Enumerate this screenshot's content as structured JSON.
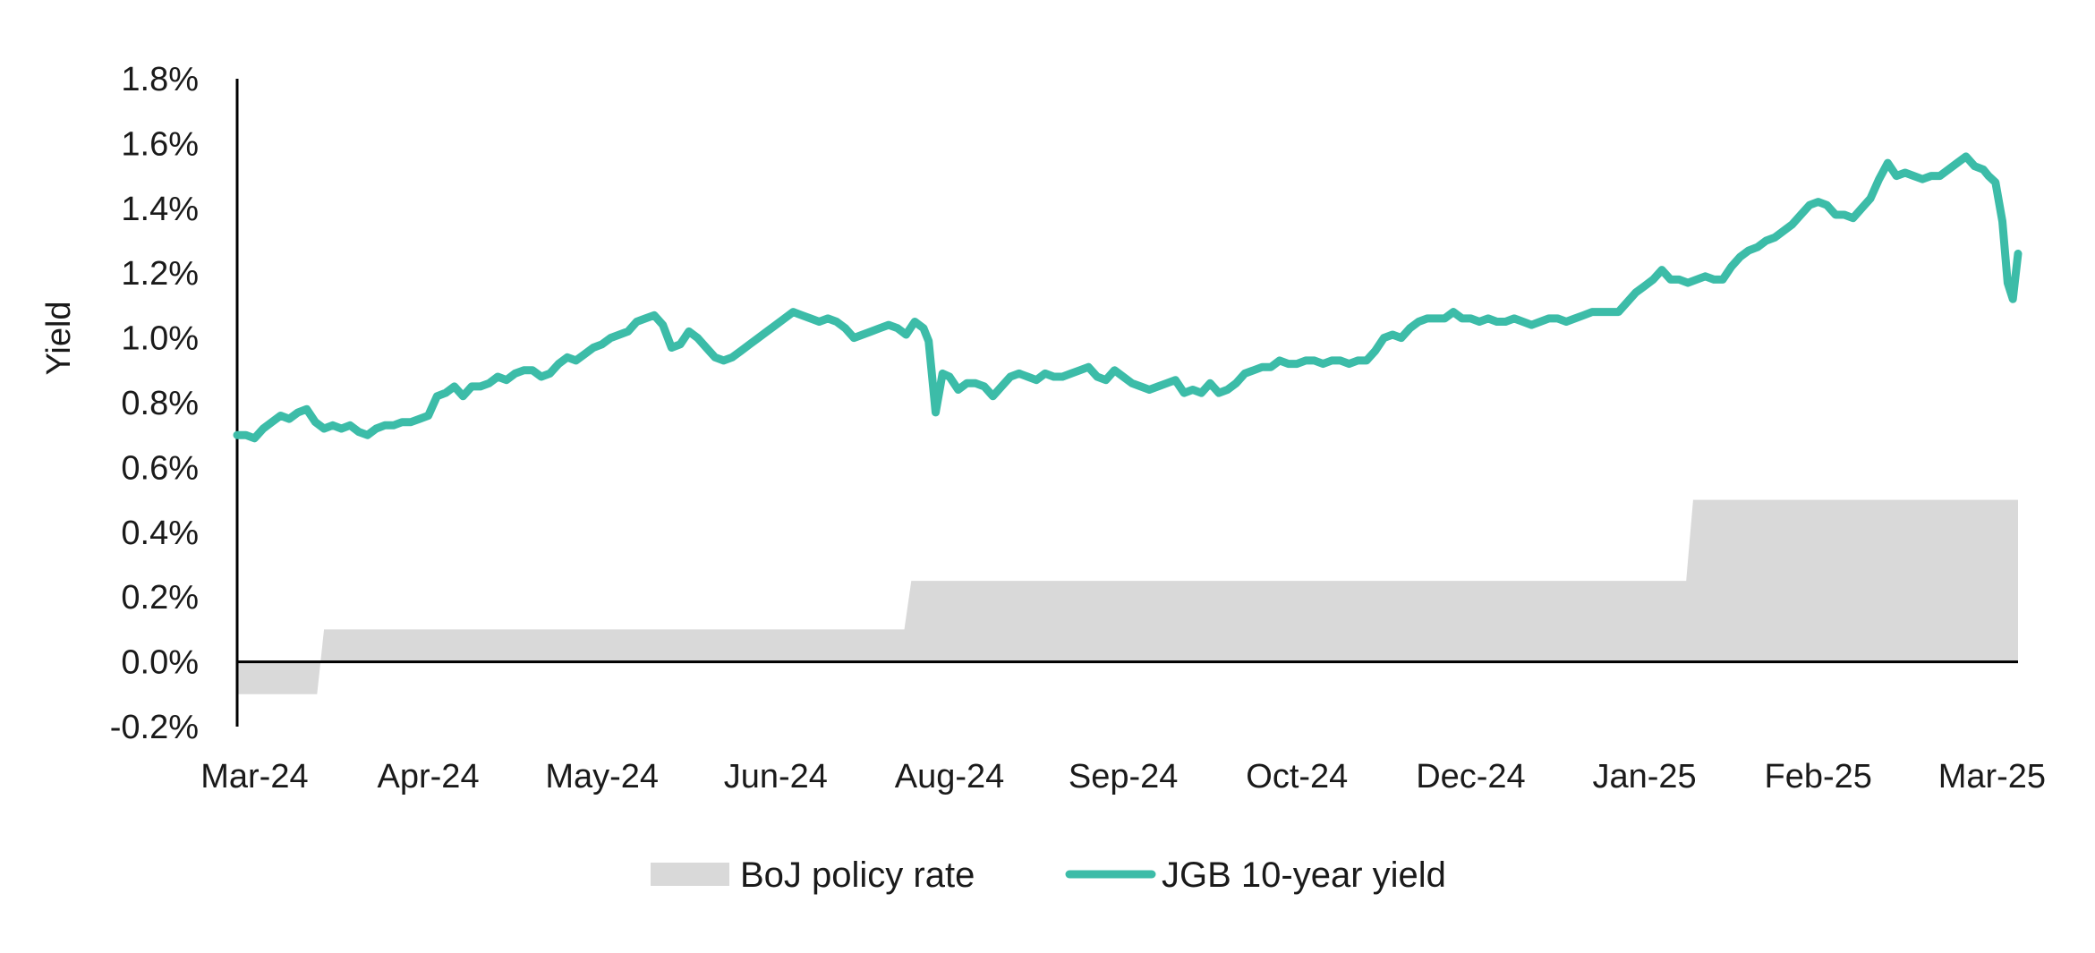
{
  "chart_data": {
    "type": "line",
    "title": "",
    "ylabel": "Yield",
    "xlabel": "",
    "ylim": [
      -0.2,
      1.8
    ],
    "y_ticks": [
      "1.8%",
      "1.6%",
      "1.4%",
      "1.2%",
      "1.0%",
      "0.8%",
      "0.6%",
      "0.4%",
      "0.2%",
      "0.0%",
      "-0.2%"
    ],
    "y_tick_values": [
      1.8,
      1.6,
      1.4,
      1.2,
      1.0,
      0.8,
      0.6,
      0.4,
      0.2,
      0.0,
      -0.2
    ],
    "x_ticks": [
      "Mar-24",
      "Apr-24",
      "May-24",
      "Jun-24",
      "Aug-24",
      "Sep-24",
      "Oct-24",
      "Dec-24",
      "Jan-25",
      "Feb-25",
      "Mar-25"
    ],
    "x_tick_positions": [
      0.1,
      1.1,
      2.1,
      3.1,
      4.1,
      5.1,
      6.1,
      7.1,
      8.1,
      9.1,
      10.1
    ],
    "xlim": [
      0,
      10.25
    ],
    "legend": {
      "placement": "bottom"
    },
    "series": [
      {
        "name": "BoJ policy rate",
        "kind": "area-step",
        "color": "#d9d9d9",
        "points": [
          [
            0,
            -0.1
          ],
          [
            0.46,
            -0.1
          ],
          [
            0.5,
            0.1
          ],
          [
            3.84,
            0.1
          ],
          [
            3.88,
            0.25
          ],
          [
            8.34,
            0.25
          ],
          [
            8.38,
            0.5
          ],
          [
            10.25,
            0.5
          ]
        ]
      },
      {
        "name": "JGB 10-year yield",
        "kind": "line",
        "color": "#3cbca8",
        "points": [
          [
            0,
            0.7
          ],
          [
            0.05,
            0.7
          ],
          [
            0.1,
            0.69
          ],
          [
            0.15,
            0.72
          ],
          [
            0.2,
            0.74
          ],
          [
            0.25,
            0.76
          ],
          [
            0.3,
            0.75
          ],
          [
            0.35,
            0.77
          ],
          [
            0.4,
            0.78
          ],
          [
            0.45,
            0.74
          ],
          [
            0.5,
            0.72
          ],
          [
            0.55,
            0.73
          ],
          [
            0.6,
            0.72
          ],
          [
            0.65,
            0.73
          ],
          [
            0.7,
            0.71
          ],
          [
            0.75,
            0.7
          ],
          [
            0.8,
            0.72
          ],
          [
            0.85,
            0.73
          ],
          [
            0.9,
            0.73
          ],
          [
            0.95,
            0.74
          ],
          [
            1.0,
            0.74
          ],
          [
            1.05,
            0.75
          ],
          [
            1.1,
            0.76
          ],
          [
            1.15,
            0.82
          ],
          [
            1.2,
            0.83
          ],
          [
            1.25,
            0.85
          ],
          [
            1.3,
            0.82
          ],
          [
            1.35,
            0.85
          ],
          [
            1.4,
            0.85
          ],
          [
            1.45,
            0.86
          ],
          [
            1.5,
            0.88
          ],
          [
            1.55,
            0.87
          ],
          [
            1.6,
            0.89
          ],
          [
            1.65,
            0.9
          ],
          [
            1.7,
            0.9
          ],
          [
            1.75,
            0.88
          ],
          [
            1.8,
            0.89
          ],
          [
            1.85,
            0.92
          ],
          [
            1.9,
            0.94
          ],
          [
            1.95,
            0.93
          ],
          [
            2.0,
            0.95
          ],
          [
            2.05,
            0.97
          ],
          [
            2.1,
            0.98
          ],
          [
            2.15,
            1.0
          ],
          [
            2.2,
            1.01
          ],
          [
            2.25,
            1.02
          ],
          [
            2.3,
            1.05
          ],
          [
            2.35,
            1.06
          ],
          [
            2.4,
            1.07
          ],
          [
            2.45,
            1.04
          ],
          [
            2.5,
            0.97
          ],
          [
            2.55,
            0.98
          ],
          [
            2.6,
            1.02
          ],
          [
            2.65,
            1.0
          ],
          [
            2.7,
            0.97
          ],
          [
            2.75,
            0.94
          ],
          [
            2.8,
            0.93
          ],
          [
            2.85,
            0.94
          ],
          [
            2.9,
            0.96
          ],
          [
            2.95,
            0.98
          ],
          [
            3.0,
            1.0
          ],
          [
            3.05,
            1.02
          ],
          [
            3.1,
            1.04
          ],
          [
            3.15,
            1.06
          ],
          [
            3.2,
            1.08
          ],
          [
            3.25,
            1.07
          ],
          [
            3.3,
            1.06
          ],
          [
            3.35,
            1.05
          ],
          [
            3.4,
            1.06
          ],
          [
            3.45,
            1.05
          ],
          [
            3.5,
            1.03
          ],
          [
            3.55,
            1.0
          ],
          [
            3.6,
            1.01
          ],
          [
            3.65,
            1.02
          ],
          [
            3.7,
            1.03
          ],
          [
            3.75,
            1.04
          ],
          [
            3.8,
            1.03
          ],
          [
            3.85,
            1.01
          ],
          [
            3.9,
            1.05
          ],
          [
            3.95,
            1.03
          ],
          [
            3.98,
            0.99
          ],
          [
            4.02,
            0.77
          ],
          [
            4.06,
            0.89
          ],
          [
            4.1,
            0.88
          ],
          [
            4.15,
            0.84
          ],
          [
            4.2,
            0.86
          ],
          [
            4.25,
            0.86
          ],
          [
            4.3,
            0.85
          ],
          [
            4.35,
            0.82
          ],
          [
            4.4,
            0.85
          ],
          [
            4.45,
            0.88
          ],
          [
            4.5,
            0.89
          ],
          [
            4.55,
            0.88
          ],
          [
            4.6,
            0.87
          ],
          [
            4.65,
            0.89
          ],
          [
            4.7,
            0.88
          ],
          [
            4.75,
            0.88
          ],
          [
            4.8,
            0.89
          ],
          [
            4.85,
            0.9
          ],
          [
            4.9,
            0.91
          ],
          [
            4.95,
            0.88
          ],
          [
            5.0,
            0.87
          ],
          [
            5.05,
            0.9
          ],
          [
            5.1,
            0.88
          ],
          [
            5.15,
            0.86
          ],
          [
            5.2,
            0.85
          ],
          [
            5.25,
            0.84
          ],
          [
            5.3,
            0.85
          ],
          [
            5.35,
            0.86
          ],
          [
            5.4,
            0.87
          ],
          [
            5.45,
            0.83
          ],
          [
            5.5,
            0.84
          ],
          [
            5.55,
            0.83
          ],
          [
            5.6,
            0.86
          ],
          [
            5.65,
            0.83
          ],
          [
            5.7,
            0.84
          ],
          [
            5.75,
            0.86
          ],
          [
            5.8,
            0.89
          ],
          [
            5.85,
            0.9
          ],
          [
            5.9,
            0.91
          ],
          [
            5.95,
            0.91
          ],
          [
            6.0,
            0.93
          ],
          [
            6.05,
            0.92
          ],
          [
            6.1,
            0.92
          ],
          [
            6.15,
            0.93
          ],
          [
            6.2,
            0.93
          ],
          [
            6.25,
            0.92
          ],
          [
            6.3,
            0.93
          ],
          [
            6.35,
            0.93
          ],
          [
            6.4,
            0.92
          ],
          [
            6.45,
            0.93
          ],
          [
            6.5,
            0.93
          ],
          [
            6.55,
            0.96
          ],
          [
            6.6,
            1.0
          ],
          [
            6.65,
            1.01
          ],
          [
            6.7,
            1.0
          ],
          [
            6.75,
            1.03
          ],
          [
            6.8,
            1.05
          ],
          [
            6.85,
            1.06
          ],
          [
            6.9,
            1.06
          ],
          [
            6.95,
            1.06
          ],
          [
            7.0,
            1.08
          ],
          [
            7.05,
            1.06
          ],
          [
            7.1,
            1.06
          ],
          [
            7.15,
            1.05
          ],
          [
            7.2,
            1.06
          ],
          [
            7.25,
            1.05
          ],
          [
            7.3,
            1.05
          ],
          [
            7.35,
            1.06
          ],
          [
            7.4,
            1.05
          ],
          [
            7.45,
            1.04
          ],
          [
            7.5,
            1.05
          ],
          [
            7.55,
            1.06
          ],
          [
            7.6,
            1.06
          ],
          [
            7.65,
            1.05
          ],
          [
            7.7,
            1.06
          ],
          [
            7.75,
            1.07
          ],
          [
            7.8,
            1.08
          ],
          [
            7.85,
            1.08
          ],
          [
            7.9,
            1.08
          ],
          [
            7.95,
            1.08
          ],
          [
            8.0,
            1.11
          ],
          [
            8.05,
            1.14
          ],
          [
            8.1,
            1.16
          ],
          [
            8.15,
            1.18
          ],
          [
            8.2,
            1.21
          ],
          [
            8.25,
            1.18
          ],
          [
            8.3,
            1.18
          ],
          [
            8.35,
            1.17
          ],
          [
            8.4,
            1.18
          ],
          [
            8.45,
            1.19
          ],
          [
            8.5,
            1.18
          ],
          [
            8.55,
            1.18
          ],
          [
            8.6,
            1.22
          ],
          [
            8.65,
            1.25
          ],
          [
            8.7,
            1.27
          ],
          [
            8.75,
            1.28
          ],
          [
            8.8,
            1.3
          ],
          [
            8.85,
            1.31
          ],
          [
            8.9,
            1.33
          ],
          [
            8.95,
            1.35
          ],
          [
            9.0,
            1.38
          ],
          [
            9.05,
            1.41
          ],
          [
            9.1,
            1.42
          ],
          [
            9.15,
            1.41
          ],
          [
            9.2,
            1.38
          ],
          [
            9.25,
            1.38
          ],
          [
            9.3,
            1.37
          ],
          [
            9.35,
            1.4
          ],
          [
            9.4,
            1.43
          ],
          [
            9.45,
            1.49
          ],
          [
            9.5,
            1.54
          ],
          [
            9.55,
            1.5
          ],
          [
            9.6,
            1.51
          ],
          [
            9.65,
            1.5
          ],
          [
            9.7,
            1.49
          ],
          [
            9.75,
            1.5
          ],
          [
            9.8,
            1.5
          ],
          [
            9.85,
            1.52
          ],
          [
            9.9,
            1.54
          ],
          [
            9.95,
            1.56
          ],
          [
            10.0,
            1.53
          ],
          [
            10.05,
            1.52
          ],
          [
            10.08,
            1.5
          ],
          [
            10.12,
            1.48
          ],
          [
            10.16,
            1.36
          ],
          [
            10.19,
            1.17
          ],
          [
            10.22,
            1.12
          ],
          [
            10.25,
            1.26
          ]
        ]
      }
    ]
  }
}
